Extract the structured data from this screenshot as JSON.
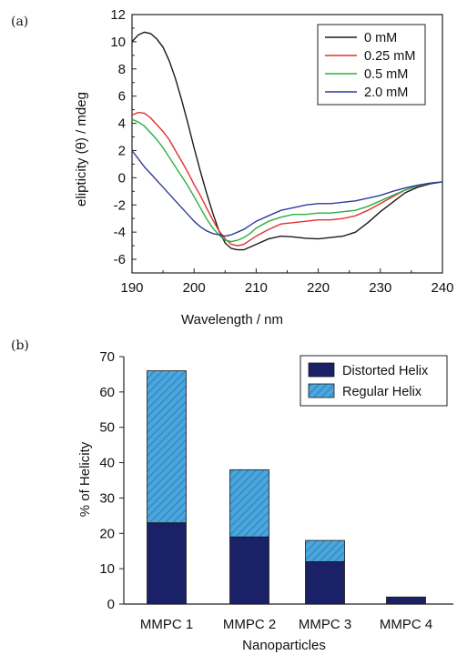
{
  "chart_data": [
    {
      "type": "line",
      "panel_label": "(a)",
      "xlabel": "Wavelength / nm",
      "ylabel": "elipticity (θ) / mdeg",
      "xlim": [
        190,
        240
      ],
      "ylim": [
        -7,
        12
      ],
      "x_ticks": [
        "190",
        "200",
        "210",
        "220",
        "230",
        "240"
      ],
      "y_ticks": [
        "12",
        "10",
        "8",
        "6",
        "4",
        "2",
        "0",
        "-2",
        "-4",
        "-6"
      ],
      "legend_position": "top-right",
      "series": [
        {
          "name": "0 mM",
          "color": "#1a1a1a",
          "x": [
            190,
            191,
            192,
            193,
            194,
            195,
            196,
            197,
            198,
            199,
            200,
            201,
            202,
            203,
            204,
            205,
            206,
            207,
            208,
            209,
            210,
            212,
            214,
            216,
            218,
            220,
            222,
            224,
            226,
            228,
            230,
            232,
            234,
            236,
            238,
            240
          ],
          "y": [
            10.0,
            10.5,
            10.7,
            10.6,
            10.2,
            9.6,
            8.6,
            7.3,
            5.7,
            4.0,
            2.2,
            0.5,
            -1.1,
            -2.6,
            -3.9,
            -4.8,
            -5.2,
            -5.3,
            -5.3,
            -5.1,
            -4.9,
            -4.5,
            -4.3,
            -4.35,
            -4.45,
            -4.5,
            -4.4,
            -4.3,
            -4.0,
            -3.3,
            -2.5,
            -1.8,
            -1.1,
            -0.7,
            -0.45,
            -0.3
          ]
        },
        {
          "name": "0.25 mM",
          "color": "#e0322e",
          "x": [
            190,
            191,
            192,
            193,
            194,
            195,
            196,
            197,
            198,
            199,
            200,
            201,
            202,
            203,
            204,
            205,
            206,
            207,
            208,
            209,
            210,
            212,
            214,
            216,
            218,
            220,
            222,
            224,
            226,
            228,
            230,
            232,
            234,
            236,
            238,
            240
          ],
          "y": [
            4.6,
            4.8,
            4.75,
            4.4,
            3.9,
            3.4,
            2.8,
            2.0,
            1.2,
            0.4,
            -0.5,
            -1.3,
            -2.2,
            -3.1,
            -3.9,
            -4.5,
            -4.9,
            -5.0,
            -4.9,
            -4.6,
            -4.3,
            -3.8,
            -3.4,
            -3.3,
            -3.2,
            -3.1,
            -3.1,
            -3.0,
            -2.8,
            -2.4,
            -1.9,
            -1.4,
            -0.9,
            -0.6,
            -0.4,
            -0.3
          ]
        },
        {
          "name": "0.5 mM",
          "color": "#2fae3f",
          "x": [
            190,
            191,
            192,
            193,
            194,
            195,
            196,
            197,
            198,
            199,
            200,
            201,
            202,
            203,
            204,
            205,
            206,
            207,
            208,
            209,
            210,
            212,
            214,
            216,
            218,
            220,
            222,
            224,
            226,
            228,
            230,
            232,
            234,
            236,
            238,
            240
          ],
          "y": [
            4.3,
            4.1,
            3.8,
            3.3,
            2.8,
            2.2,
            1.5,
            0.8,
            0.1,
            -0.6,
            -1.4,
            -2.2,
            -3.0,
            -3.7,
            -4.2,
            -4.6,
            -4.7,
            -4.6,
            -4.4,
            -4.1,
            -3.7,
            -3.2,
            -2.9,
            -2.7,
            -2.7,
            -2.6,
            -2.6,
            -2.5,
            -2.4,
            -2.1,
            -1.7,
            -1.3,
            -0.9,
            -0.6,
            -0.4,
            -0.3
          ]
        },
        {
          "name": "2.0 mM",
          "color": "#2f3d9c",
          "x": [
            190,
            191,
            192,
            193,
            194,
            195,
            196,
            197,
            198,
            199,
            200,
            201,
            202,
            203,
            204,
            205,
            206,
            207,
            208,
            209,
            210,
            212,
            214,
            216,
            218,
            220,
            222,
            224,
            226,
            228,
            230,
            232,
            234,
            236,
            238,
            240
          ],
          "y": [
            2.0,
            1.4,
            0.8,
            0.3,
            -0.2,
            -0.7,
            -1.2,
            -1.7,
            -2.2,
            -2.7,
            -3.2,
            -3.6,
            -3.9,
            -4.1,
            -4.2,
            -4.3,
            -4.2,
            -4.0,
            -3.8,
            -3.5,
            -3.2,
            -2.8,
            -2.4,
            -2.2,
            -2.0,
            -1.9,
            -1.9,
            -1.8,
            -1.7,
            -1.5,
            -1.3,
            -1.0,
            -0.75,
            -0.55,
            -0.4,
            -0.3
          ]
        }
      ]
    },
    {
      "type": "bar",
      "stacked": true,
      "panel_label": "(b)",
      "xlabel": "Nanoparticles",
      "ylabel": "% of Helicity",
      "ylim": [
        0,
        70
      ],
      "y_ticks": [
        "70",
        "60",
        "50",
        "40",
        "30",
        "20",
        "10",
        "0"
      ],
      "categories": [
        "MMPC 1",
        "MMPC 2",
        "MMPC 3",
        "MMPC 4"
      ],
      "legend_position": "top-right",
      "series": [
        {
          "name": "Distorted Helix",
          "color": "#1b2166",
          "values": [
            23,
            19,
            12,
            2
          ]
        },
        {
          "name": "Regular Helix",
          "color": "#3a9fd8",
          "values": [
            43,
            19,
            6,
            0
          ]
        }
      ]
    }
  ]
}
